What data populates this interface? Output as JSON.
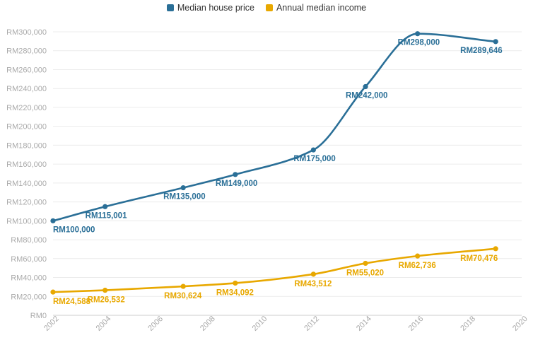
{
  "chart_data": {
    "type": "line",
    "title": "",
    "xlabel": "",
    "ylabel": "",
    "x_ticks": [
      "2002",
      "2004",
      "2006",
      "2008",
      "2010",
      "2012",
      "2014",
      "2016",
      "2018",
      "2020"
    ],
    "y_ticks": [
      "RM0",
      "RM20,000",
      "RM40,000",
      "RM60,000",
      "RM80,000",
      "RM100,000",
      "RM120,000",
      "RM140,000",
      "RM160,000",
      "RM180,000",
      "RM200,000",
      "RM220,000",
      "RM240,000",
      "RM260,000",
      "RM280,000",
      "RM300,000"
    ],
    "xlim": [
      2002,
      2020
    ],
    "ylim": [
      0,
      300000
    ],
    "grid": "horizontal",
    "legend_position": "top",
    "series": [
      {
        "name": "Median house price",
        "color": "#2a6f97",
        "x": [
          2002,
          2004,
          2007,
          2009,
          2012,
          2014,
          2016,
          2019
        ],
        "values": [
          100000,
          115001,
          135000,
          149000,
          175000,
          242000,
          298000,
          289646
        ],
        "labels": [
          "RM100,000",
          "RM115,001",
          "RM135,000",
          "RM149,000",
          "RM175,000",
          "RM242,000",
          "RM298,000",
          "RM289,646"
        ]
      },
      {
        "name": "Annual median income",
        "color": "#e8a800",
        "x": [
          2002,
          2004,
          2007,
          2009,
          2012,
          2014,
          2016,
          2019
        ],
        "values": [
          24588,
          26532,
          30624,
          34092,
          43512,
          55020,
          62736,
          70476
        ],
        "labels": [
          "RM24,588",
          "RM26,532",
          "RM30,624",
          "RM34,092",
          "RM43,512",
          "RM55,020",
          "RM62,736",
          "RM70,476"
        ]
      }
    ]
  }
}
